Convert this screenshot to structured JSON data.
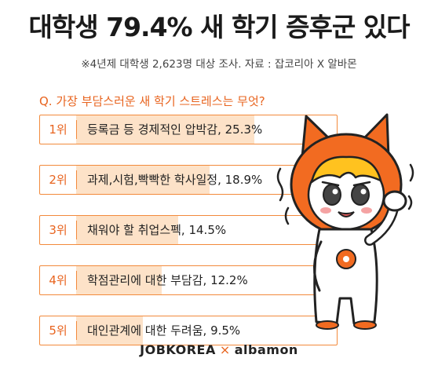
{
  "header": {
    "title": "대학생 79.4% 새 학기 증후군 있다",
    "subtitle": "※4년제 대학생 2,623명 대상 조사. 자료 : 잡코리아 X 알바몬"
  },
  "question": "Q. 가장 부담스러운 새 학기 스트레스는 무엇?",
  "chart_data": {
    "type": "bar",
    "orientation": "horizontal",
    "categories": [
      "등록금 등 경제적인 압박감",
      "과제,시험,빡빡한 학사일정",
      "채워야 할 취업스펙",
      "학점관리에 대한 부담감",
      "대인관계에 대한 두려움"
    ],
    "ranks": [
      "1위",
      "2위",
      "3위",
      "4위",
      "5위"
    ],
    "values": [
      25.3,
      18.9,
      14.5,
      12.2,
      9.5
    ],
    "value_labels": [
      "25.3%",
      "18.9%",
      "14.5%",
      "12.2%",
      "9.5%"
    ],
    "labels": [
      "등록금 등 경제적인 압박감, 25.3%",
      "과제,시험,빡빡한 학사일정, 18.9%",
      "채워야 할 취업스펙, 14.5%",
      "학점관리에 대한 부담감, 12.2%",
      "대인관계에 대한 두려움, 9.5%"
    ],
    "unit": "%",
    "xlim": [
      0,
      37
    ],
    "colors": {
      "border": "#f28a3c",
      "fill": "#fde2c8",
      "accent": "#e8641f"
    }
  },
  "footer": {
    "brand1": "JOBKOREA",
    "separator": "×",
    "brand2": "albamon"
  },
  "mascot": {
    "icon": "cat-mascot-icon"
  }
}
